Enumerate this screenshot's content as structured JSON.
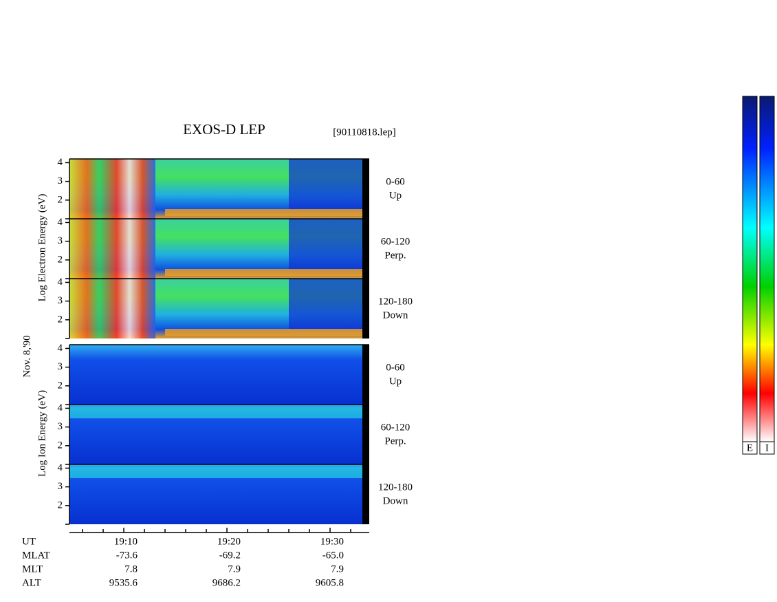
{
  "title": "EXOS-D LEP",
  "file": "[90110818.lep]",
  "date": "Nov. 8,'90",
  "groups": [
    {
      "ylabel": "Log Electron Energy (eV)",
      "panels": [
        {
          "range": "0-60",
          "direction": "Up"
        },
        {
          "range": "60-120",
          "direction": "Perp."
        },
        {
          "range": "120-180",
          "direction": "Down"
        }
      ]
    },
    {
      "ylabel": "Log Ion Energy (eV)",
      "panels": [
        {
          "range": "0-60",
          "direction": "Up"
        },
        {
          "range": "60-120",
          "direction": "Perp."
        },
        {
          "range": "120-180",
          "direction": "Down"
        }
      ]
    }
  ],
  "ylim": [
    1,
    4.2
  ],
  "yticks": [
    2,
    3,
    4
  ],
  "xlim": [
    1144.73,
    1173.8
  ],
  "xticks": [
    {
      "value": 1150,
      "label": "19:10"
    },
    {
      "value": 1160,
      "label": "19:20"
    },
    {
      "value": 1170,
      "label": "19:30"
    }
  ],
  "xminorticks": [
    1146,
    1148,
    1152,
    1154,
    1156,
    1158,
    1162,
    1164,
    1166,
    1168,
    1172
  ],
  "ut_label": "UT",
  "ephemeris": [
    {
      "label": "MLAT",
      "values": [
        "-73.6",
        "-69.2",
        "-65.0"
      ]
    },
    {
      "label": "MLT",
      "values": [
        "7.8",
        "7.9",
        "7.9"
      ]
    },
    {
      "label": "ALT",
      "values": [
        "9535.6",
        "9686.2",
        "9605.8"
      ]
    }
  ],
  "colorbars": [
    "E",
    "I"
  ]
}
